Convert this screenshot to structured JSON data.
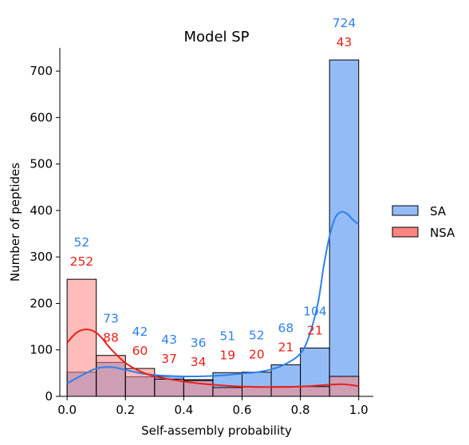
{
  "chart_data": {
    "type": "histogram",
    "title": "Model SP",
    "xlabel": "Self-assembly probability",
    "ylabel": "Number of peptides",
    "xlim": [
      -0.025,
      1.05
    ],
    "ylim": [
      0,
      750
    ],
    "x_ticks": [
      0.0,
      0.2,
      0.4,
      0.6,
      0.8,
      1.0
    ],
    "x_tick_labels": [
      "0.0",
      "0.2",
      "0.4",
      "0.6",
      "0.8",
      "1.0"
    ],
    "y_ticks": [
      0,
      100,
      200,
      300,
      400,
      500,
      600,
      700
    ],
    "y_tick_labels": [
      "0",
      "100",
      "200",
      "300",
      "400",
      "500",
      "600",
      "700"
    ],
    "bin_edges": [
      0.0,
      0.1,
      0.2,
      0.3,
      0.4,
      0.5,
      0.6,
      0.7,
      0.8,
      0.9,
      1.0
    ],
    "legend": {
      "position": "right"
    },
    "series": [
      {
        "name": "SA",
        "color": "#2f80ed",
        "fill": "#93bcf7",
        "counts": [
          52,
          73,
          42,
          43,
          36,
          51,
          52,
          68,
          104,
          724
        ],
        "kde_x": [
          0.0,
          0.05,
          0.1,
          0.15,
          0.2,
          0.25,
          0.3,
          0.35,
          0.4,
          0.45,
          0.5,
          0.55,
          0.6,
          0.65,
          0.7,
          0.75,
          0.8,
          0.83,
          0.86,
          0.88,
          0.9,
          0.92,
          0.94,
          0.96,
          0.98,
          1.0
        ],
        "kde_y": [
          28,
          45,
          60,
          63,
          57,
          50,
          46,
          44,
          43,
          43,
          44,
          46,
          49,
          52,
          58,
          70,
          92,
          130,
          200,
          280,
          345,
          385,
          397,
          393,
          380,
          370
        ]
      },
      {
        "name": "NSA",
        "color": "#e8211a",
        "fill": "#ff8580",
        "counts": [
          252,
          88,
          60,
          37,
          34,
          19,
          20,
          21,
          21,
          43
        ],
        "kde_x": [
          0.0,
          0.02,
          0.04,
          0.06,
          0.08,
          0.1,
          0.12,
          0.15,
          0.2,
          0.25,
          0.3,
          0.35,
          0.4,
          0.45,
          0.5,
          0.6,
          0.7,
          0.8,
          0.9,
          0.95,
          1.0
        ],
        "kde_y": [
          115,
          130,
          140,
          144,
          143,
          137,
          125,
          102,
          72,
          54,
          43,
          37,
          32,
          28,
          25,
          21,
          20,
          21,
          25,
          26,
          22
        ]
      }
    ]
  }
}
